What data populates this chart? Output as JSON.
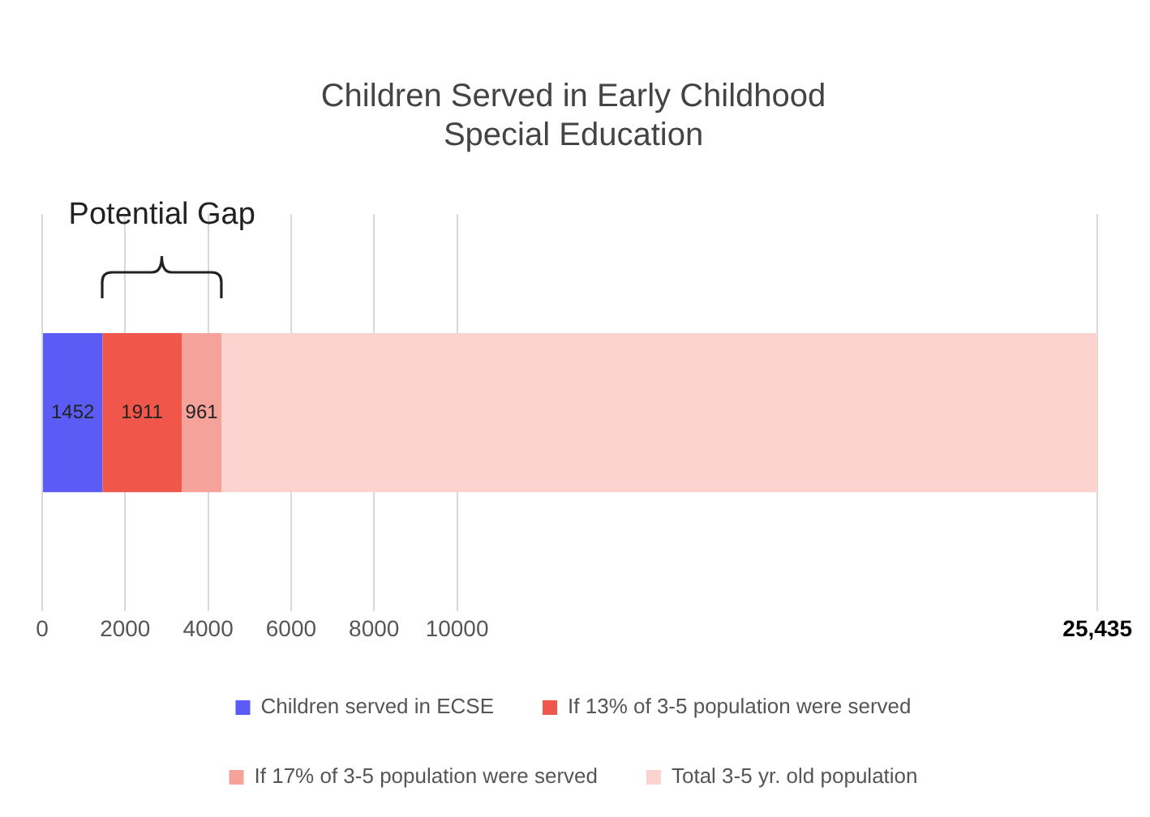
{
  "chart_data": {
    "type": "bar",
    "title": "Children Served in Early Childhood Special Education",
    "orientation": "horizontal",
    "stacked": true,
    "categories": [
      null
    ],
    "series": [
      {
        "name": "Children served in ECSE",
        "color": "#5a5cf5",
        "values": [
          1452
        ],
        "value_labels": [
          "1452"
        ]
      },
      {
        "name": "If 13% of 3-5 population were served",
        "color": "#f0564a",
        "values": [
          1911
        ],
        "value_labels": [
          "1911"
        ]
      },
      {
        "name": "If 17% of 3-5 population were served",
        "color": "#f5a39a",
        "values": [
          961
        ],
        "value_labels": [
          "961"
        ]
      },
      {
        "name": "Total 3-5 yr. old population",
        "color": "#fcd3cf",
        "values": [
          21111
        ],
        "value_labels": [
          null
        ]
      }
    ],
    "xlim": [
      0,
      25435
    ],
    "xticks": [
      0,
      2000,
      4000,
      6000,
      8000,
      10000,
      {
        "value": 25435,
        "label": "25,435"
      }
    ],
    "grid": "x",
    "legend": "bottom",
    "annotations": [
      "Potential Gap"
    ]
  }
}
